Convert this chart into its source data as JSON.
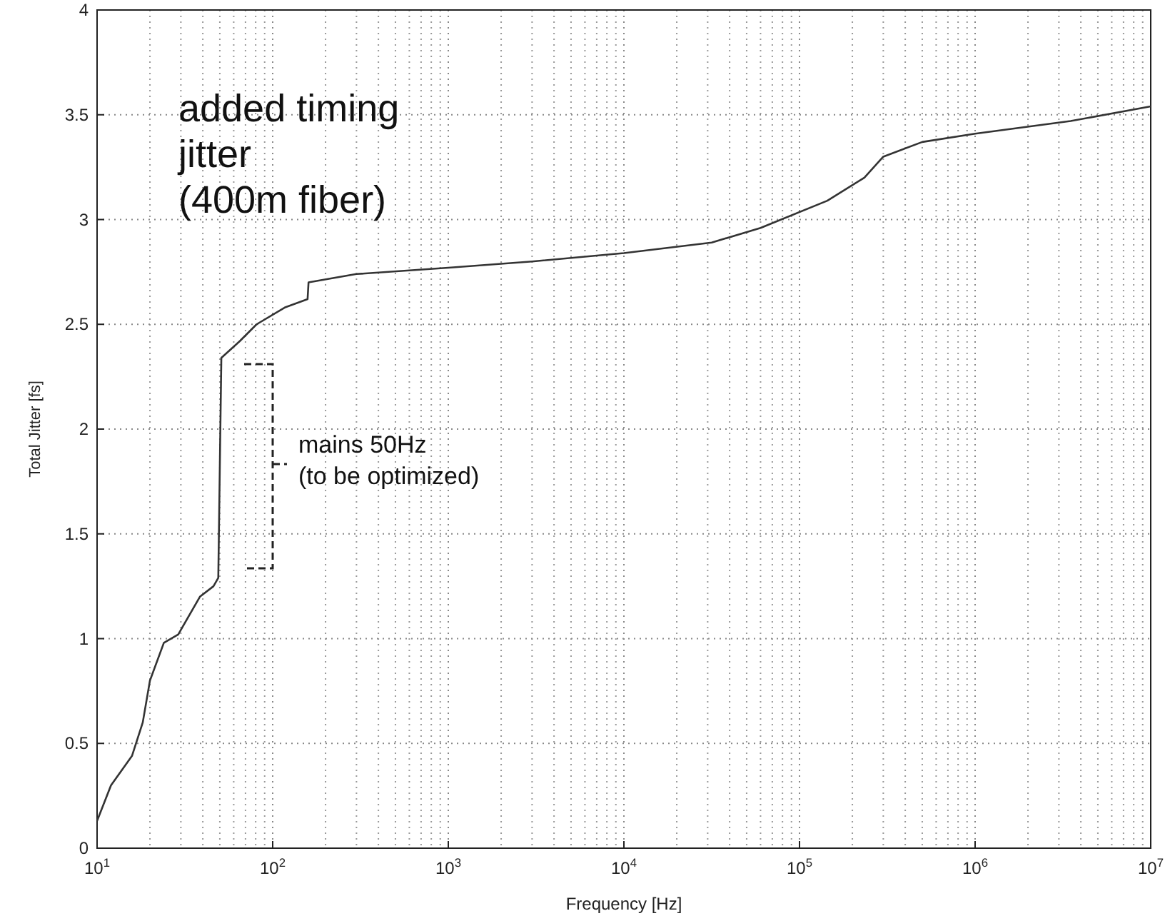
{
  "chart_data": {
    "type": "line",
    "xlabel": "Frequency [Hz]",
    "ylabel": "Total Jitter [fs]",
    "annotations": [
      "added timing\njitter\n(400m fiber)",
      "mains 50Hz\n(to be optimized)"
    ],
    "x": [
      10,
      12,
      15.8,
      18.2,
      20,
      24,
      29,
      38.5,
      46,
      49,
      51,
      65,
      81,
      117,
      158,
      160,
      300,
      1000,
      3000,
      10000,
      31600,
      60000,
      144000,
      234000,
      300000,
      500000,
      1000000,
      3500000,
      10000000
    ],
    "series": [
      {
        "color": "#333333",
        "values": [
          0.13,
          0.3,
          0.44,
          0.6,
          0.8,
          0.98,
          1.02,
          1.2,
          1.25,
          1.29,
          2.34,
          2.42,
          2.5,
          2.58,
          2.62,
          2.7,
          2.74,
          2.77,
          2.8,
          2.84,
          2.89,
          2.96,
          3.09,
          3.2,
          3.3,
          3.37,
          3.41,
          3.47,
          3.54
        ]
      }
    ],
    "log": "x",
    "xlim": [
      10,
      10000000
    ],
    "xticks": [
      {
        "value": 10,
        "label": "10$^{1}$"
      },
      {
        "value": 100,
        "label": "10$^{2}$"
      },
      {
        "value": 1000,
        "label": "10$^{3}$"
      },
      {
        "value": 10000,
        "label": "10$^{4}$"
      },
      {
        "value": 100000,
        "label": "10$^{5}$"
      },
      {
        "value": 1000000,
        "label": "10$^{6}$"
      },
      {
        "value": 10000000,
        "label": "10$^{7}$"
      }
    ],
    "ylim": [
      0,
      4
    ],
    "yticks": [
      0,
      0.5,
      1,
      1.5,
      2,
      2.5,
      3,
      3.5,
      4
    ],
    "grid": true,
    "marker": "none",
    "line_style": "solid"
  }
}
